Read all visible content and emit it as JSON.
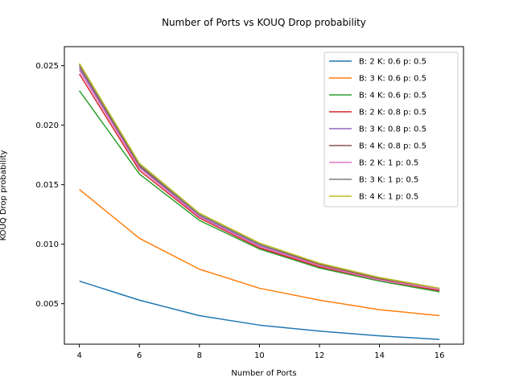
{
  "chart_data": {
    "type": "line",
    "title": "Number of Ports vs KOUQ Drop probability",
    "xlabel": "Number of Ports",
    "ylabel": "KOUQ Drop probability",
    "x": [
      4,
      6,
      8,
      10,
      12,
      14,
      16
    ],
    "xticks": [
      "4",
      "6",
      "8",
      "10",
      "12",
      "14",
      "16"
    ],
    "yticks": [
      "0.005",
      "0.010",
      "0.015",
      "0.020",
      "0.025"
    ],
    "ytick_values": [
      0.005,
      0.01,
      0.015,
      0.02,
      0.025
    ],
    "xlim": [
      3.5,
      16.8
    ],
    "ylim": [
      0.0016,
      0.0266
    ],
    "grid": false,
    "legend_position": "top-right",
    "series": [
      {
        "name": "B: 2 K: 0.6 p: 0.5",
        "color": "#1f77b4",
        "values": [
          0.0069,
          0.0053,
          0.004,
          0.0032,
          0.0027,
          0.0023,
          0.002
        ]
      },
      {
        "name": "B: 3 K: 0.6 p: 0.5",
        "color": "#ff7f0e",
        "values": [
          0.0146,
          0.0105,
          0.0079,
          0.0063,
          0.0053,
          0.0045,
          0.004
        ]
      },
      {
        "name": "B: 4 K: 0.6 p: 0.5",
        "color": "#2ca02c",
        "values": [
          0.0229,
          0.0159,
          0.012,
          0.0096,
          0.008,
          0.0069,
          0.006
        ]
      },
      {
        "name": "B: 2 K: 0.8 p: 0.5",
        "color": "#d62728",
        "values": [
          0.0243,
          0.0162,
          0.0122,
          0.0097,
          0.0081,
          0.007,
          0.0061
        ]
      },
      {
        "name": "B: 3 K: 0.8 p: 0.5",
        "color": "#9467bd",
        "values": [
          0.0248,
          0.0165,
          0.0124,
          0.0099,
          0.0082,
          0.0071,
          0.0062
        ]
      },
      {
        "name": "B: 4 K: 0.8 p: 0.5",
        "color": "#8c564b",
        "values": [
          0.025,
          0.0166,
          0.0125,
          0.01,
          0.0083,
          0.0071,
          0.0062
        ]
      },
      {
        "name": "B: 2 K: 1 p: 0.5",
        "color": "#e377c2",
        "values": [
          0.0246,
          0.0164,
          0.0123,
          0.0098,
          0.0082,
          0.007,
          0.0062
        ]
      },
      {
        "name": "B: 3 K: 1 p: 0.5",
        "color": "#7f7f7f",
        "values": [
          0.0251,
          0.0167,
          0.0125,
          0.01,
          0.0084,
          0.0072,
          0.0063
        ]
      },
      {
        "name": "B: 4 K: 1 p: 0.5",
        "color": "#bcbd22",
        "values": [
          0.0252,
          0.0168,
          0.0126,
          0.0101,
          0.0084,
          0.0072,
          0.0063
        ]
      }
    ]
  }
}
